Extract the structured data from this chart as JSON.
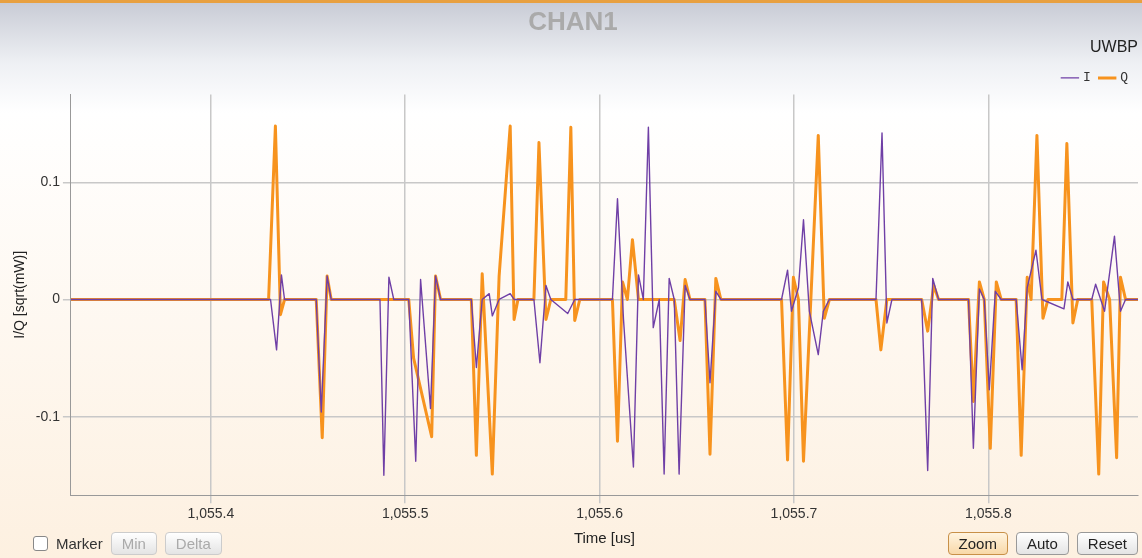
{
  "chart_data": {
    "type": "line",
    "title": "CHAN1",
    "subtitle": "UWBP",
    "xlabel": "Time [us]",
    "ylabel": "I/Q [sqrt(mW)]",
    "xlim": [
      1055.328,
      1055.877
    ],
    "ylim": [
      -0.167,
      0.175
    ],
    "xticks": [
      {
        "value": 1055.4,
        "label": "1,055.4"
      },
      {
        "value": 1055.5,
        "label": "1,055.5"
      },
      {
        "value": 1055.6,
        "label": "1,055.6"
      },
      {
        "value": 1055.7,
        "label": "1,055.7"
      },
      {
        "value": 1055.8,
        "label": "1,055.8"
      }
    ],
    "yticks": [
      -0.1,
      0,
      0.1
    ],
    "grid": true,
    "legend": "top right",
    "marker": "none",
    "line_style": "solid",
    "annotations": [
      "Marker",
      "Min",
      "Delta",
      "Zoom",
      "Auto",
      "Reset"
    ],
    "series": [
      {
        "name": "I",
        "color": "#6f3fa6",
        "x": [
          1055.328,
          1055.4307,
          1055.4338,
          1055.4363,
          1055.4379,
          1055.4542,
          1055.4568,
          1055.4598,
          1055.4619,
          1055.487,
          1055.489,
          1055.4916,
          1055.4941,
          1055.5018,
          1055.5054,
          1055.5079,
          1055.513,
          1055.5156,
          1055.5182,
          1055.534,
          1055.5366,
          1055.5396,
          1055.5432,
          1055.5448,
          1055.5483,
          1055.554,
          1055.556,
          1055.5662,
          1055.5693,
          1055.5724,
          1055.5749,
          1055.5836,
          1055.5872,
          1055.6066,
          1055.6092,
          1055.6123,
          1055.6174,
          1055.62,
          1055.6225,
          1055.6251,
          1055.6276,
          1055.6307,
          1055.6332,
          1055.6358,
          1055.6384,
          1055.6409,
          1055.644,
          1055.6465,
          1055.6542,
          1055.6568,
          1055.6598,
          1055.6624,
          1055.6936,
          1055.6967,
          1055.6987,
          1055.7023,
          1055.7049,
          1055.7079,
          1055.7125,
          1055.7151,
          1055.7182,
          1055.7422,
          1055.7453,
          1055.7478,
          1055.7504,
          1055.7657,
          1055.7688,
          1055.7714,
          1055.7744,
          1055.7898,
          1055.7923,
          1055.7954,
          1055.7979,
          1055.8005,
          1055.8036,
          1055.8066,
          1055.8143,
          1055.8174,
          1055.82,
          1055.8245,
          1055.8276,
          1055.8389,
          1055.8409,
          1055.8435,
          1055.8532,
          1055.8552,
          1055.8598,
          1055.8649,
          1055.868,
          1055.8706,
          1055.877
        ],
        "values": [
          0,
          0,
          -0.043,
          0.021,
          0,
          0,
          -0.096,
          0.02,
          0,
          0,
          -0.15,
          0.019,
          0,
          0,
          -0.138,
          0.017,
          -0.093,
          0.02,
          0,
          0,
          -0.058,
          0,
          0.005,
          -0.014,
          0,
          0.005,
          0,
          0,
          -0.054,
          0.012,
          0,
          -0.012,
          0,
          0,
          0.086,
          -0.017,
          -0.143,
          0.021,
          0,
          0.147,
          -0.024,
          0,
          -0.149,
          0.018,
          0,
          -0.149,
          0.012,
          0,
          0,
          -0.071,
          0.007,
          0,
          0,
          0.025,
          -0.01,
          0.01,
          0.068,
          -0.01,
          -0.047,
          -0.01,
          0,
          0,
          0.142,
          -0.02,
          0,
          0,
          -0.146,
          0.018,
          0,
          0,
          -0.127,
          0.009,
          0,
          -0.077,
          0.007,
          0,
          0,
          -0.06,
          0.01,
          0.042,
          0,
          -0.008,
          0.015,
          0,
          0,
          0.013,
          -0.01,
          0.054,
          -0.01,
          0,
          0
        ]
      },
      {
        "name": "Q",
        "color": "#f7931e",
        "x": [
          1055.328,
          1055.4297,
          1055.4332,
          1055.4358,
          1055.4379,
          1055.4542,
          1055.4573,
          1055.4598,
          1055.4619,
          1055.5018,
          1055.5043,
          1055.5136,
          1055.5156,
          1055.5182,
          1055.534,
          1055.5366,
          1055.5396,
          1055.5448,
          1055.5483,
          1055.554,
          1055.556,
          1055.558,
          1055.5662,
          1055.5688,
          1055.5724,
          1055.5749,
          1055.5826,
          1055.5852,
          1055.5872,
          1055.5898,
          1055.6066,
          1055.6092,
          1055.6118,
          1055.6143,
          1055.6169,
          1055.62,
          1055.6384,
          1055.6414,
          1055.644,
          1055.6465,
          1055.6542,
          1055.6568,
          1055.6598,
          1055.6624,
          1055.6936,
          1055.6967,
          1055.6997,
          1055.7023,
          1055.7049,
          1055.7125,
          1055.7156,
          1055.7182,
          1055.7422,
          1055.7447,
          1055.7478,
          1055.7657,
          1055.7688,
          1055.7719,
          1055.7744,
          1055.7898,
          1055.7923,
          1055.7954,
          1055.7979,
          1055.801,
          1055.8041,
          1055.8066,
          1055.8143,
          1055.8169,
          1055.82,
          1055.822,
          1055.825,
          1055.8281,
          1055.8307,
          1055.8378,
          1055.8404,
          1055.8435,
          1055.846,
          1055.8532,
          1055.8568,
          1055.8593,
          1055.8624,
          1055.866,
          1055.868,
          1055.8706,
          1055.877
        ],
        "values": [
          0,
          0,
          0.148,
          -0.013,
          0,
          0,
          -0.118,
          0.02,
          0,
          0,
          -0.05,
          -0.117,
          0.02,
          0,
          0,
          -0.133,
          0.022,
          -0.149,
          0.02,
          0.148,
          -0.017,
          0,
          0,
          0.134,
          -0.017,
          0,
          0,
          0.147,
          -0.018,
          0,
          0,
          -0.121,
          0.015,
          0,
          0.051,
          0,
          0,
          -0.035,
          0.017,
          0,
          0,
          -0.132,
          0.018,
          0,
          0,
          -0.137,
          0.019,
          0,
          -0.138,
          0.14,
          -0.016,
          0,
          0,
          -0.043,
          0,
          0,
          -0.027,
          0.012,
          0,
          0,
          -0.087,
          0.015,
          0,
          -0.127,
          0.015,
          0,
          0,
          -0.133,
          0.019,
          0,
          0.14,
          -0.016,
          0,
          0,
          0.133,
          -0.02,
          0,
          0,
          -0.149,
          0.015,
          0,
          -0.135,
          0.019,
          0,
          0
        ]
      }
    ]
  }
}
